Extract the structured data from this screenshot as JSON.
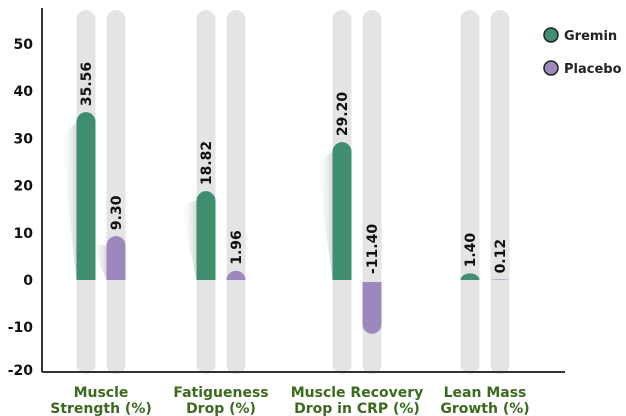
{
  "chart_data": {
    "type": "bar",
    "title": "",
    "xlabel": "",
    "ylabel": "",
    "ylim": [
      -20,
      55
    ],
    "yticks": [
      -20,
      -10,
      0,
      10,
      20,
      30,
      40,
      50
    ],
    "ytick_labels": [
      "-20",
      "-10",
      "0",
      "10",
      "20",
      "30",
      "40",
      "50"
    ],
    "categories": [
      [
        "Muscle",
        "Strength (%)"
      ],
      [
        "Fatigueness",
        "Drop (%)"
      ],
      [
        "Muscle Recovery",
        "Drop in CRP (%)"
      ],
      [
        "Lean Mass",
        "Growth (%)"
      ]
    ],
    "series": [
      {
        "name": "Gremin",
        "color": "#3f8f6e",
        "values": [
          35.56,
          18.82,
          29.2,
          1.4
        ],
        "labels": [
          "35.56",
          "18.82",
          "29.20",
          "1.40"
        ]
      },
      {
        "name": "Placebo",
        "color": "#9d88bd",
        "values": [
          9.3,
          1.96,
          -11.4,
          0.12
        ],
        "labels": [
          "9.30",
          "1.96",
          "-11.40",
          "0.12"
        ]
      }
    ],
    "legend": {
      "position": "top-right"
    },
    "grid": false
  }
}
